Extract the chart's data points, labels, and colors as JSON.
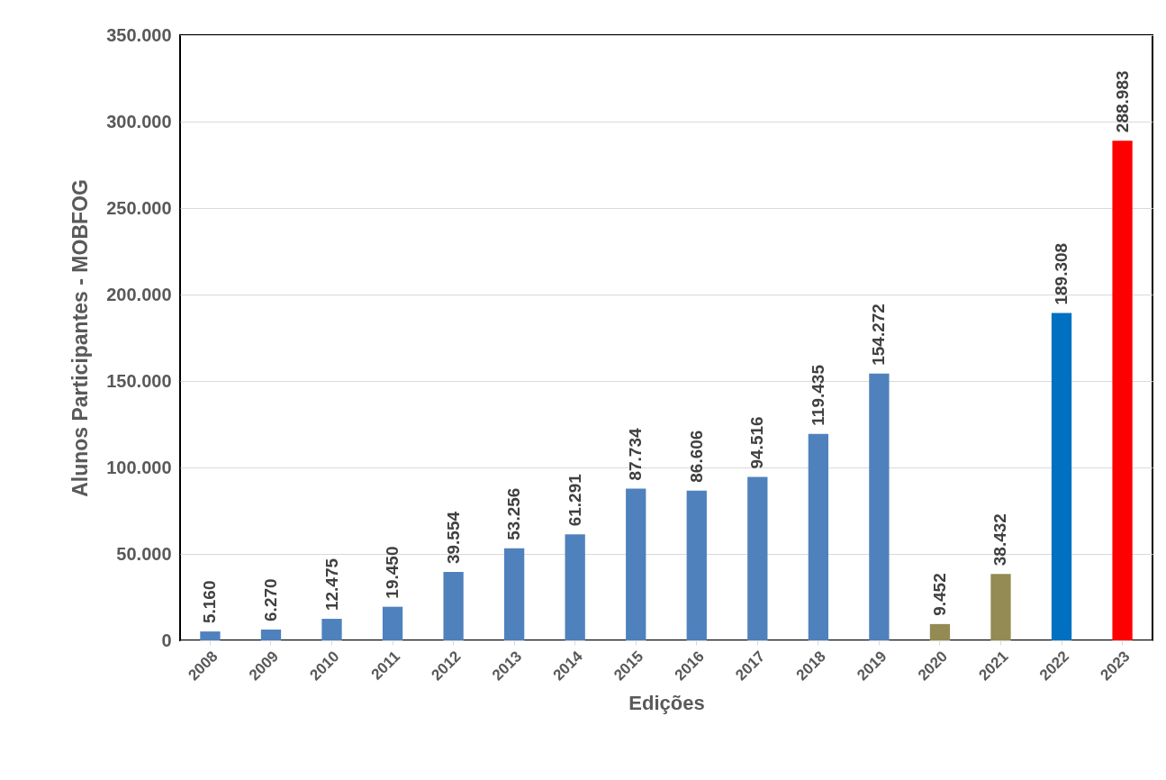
{
  "chart_data": {
    "type": "bar",
    "xlabel": "Edições",
    "ylabel": "Alunos Participantes - MOBFOG",
    "categories": [
      "2008",
      "2009",
      "2010",
      "2011",
      "2012",
      "2013",
      "2014",
      "2015",
      "2016",
      "2017",
      "2018",
      "2019",
      "2020",
      "2021",
      "2022",
      "2023"
    ],
    "values": [
      5160,
      6270,
      12475,
      19450,
      39554,
      53256,
      61291,
      87734,
      86606,
      94516,
      119435,
      154272,
      9452,
      38432,
      189308,
      288983
    ],
    "value_labels": [
      "5.160",
      "6.270",
      "12.475",
      "19.450",
      "39.554",
      "53.256",
      "61.291",
      "87.734",
      "86.606",
      "94.516",
      "119.435",
      "154.272",
      "9.452",
      "38.432",
      "189.308",
      "288.983"
    ],
    "colors": [
      "#4f81bd",
      "#4f81bd",
      "#4f81bd",
      "#4f81bd",
      "#4f81bd",
      "#4f81bd",
      "#4f81bd",
      "#4f81bd",
      "#4f81bd",
      "#4f81bd",
      "#4f81bd",
      "#4f81bd",
      "#948a54",
      "#948a54",
      "#0070c0",
      "#ff0000"
    ],
    "ylim": [
      0,
      350000
    ],
    "yticks": [
      0,
      {
        "value": 50000,
        "label": "50.000"
      },
      {
        "value": 100000,
        "label": "100.000"
      },
      {
        "value": 150000,
        "label": "150.000"
      },
      {
        "value": 200000,
        "label": "200.000"
      },
      {
        "value": 250000,
        "label": "250.000"
      },
      {
        "value": 300000,
        "label": "300.000"
      },
      {
        "value": 350000,
        "label": "350.000"
      }
    ],
    "grid": "y"
  }
}
